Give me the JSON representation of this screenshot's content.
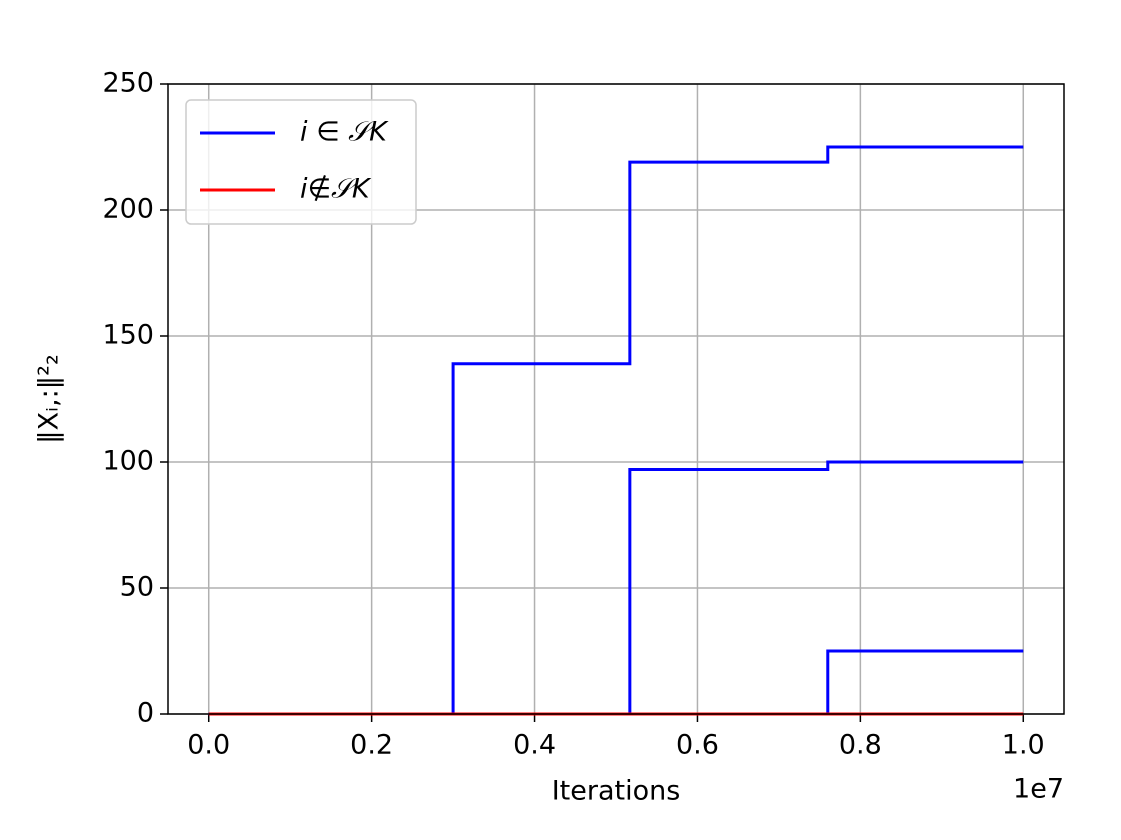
{
  "chart_data": {
    "type": "line",
    "x_label": "Iterations",
    "y_label": "‖Xᵢ,:‖²₂",
    "x_offset_label": "1e7",
    "x": [
      0,
      3000000,
      3000000,
      5170000,
      5170000,
      7600000,
      7600000,
      10000000
    ],
    "series": [
      {
        "name": "i ∈ 𝒮K",
        "color": "#0000ff",
        "lines": [
          [
            0,
            0,
            139,
            139,
            219,
            219,
            225,
            225
          ],
          [
            0,
            0,
            0,
            0,
            97,
            97,
            100,
            100
          ],
          [
            0,
            0,
            0,
            0,
            0,
            0,
            25,
            25
          ]
        ]
      },
      {
        "name": "i∉𝒮K",
        "color": "#ff0000",
        "lines": [
          [
            0,
            0,
            0,
            0,
            0,
            0,
            0,
            0
          ]
        ]
      }
    ],
    "xlim": [
      -500000,
      10500000
    ],
    "ylim": [
      0,
      250
    ],
    "xticks": [
      {
        "value": 0,
        "label": "0.0"
      },
      {
        "value": 2000000,
        "label": "0.2"
      },
      {
        "value": 4000000,
        "label": "0.4"
      },
      {
        "value": 6000000,
        "label": "0.6"
      },
      {
        "value": 8000000,
        "label": "0.8"
      },
      {
        "value": 10000000,
        "label": "1.0"
      }
    ],
    "yticks": [
      0,
      50,
      100,
      150,
      200,
      250
    ],
    "grid": true,
    "legend": "upper left"
  }
}
